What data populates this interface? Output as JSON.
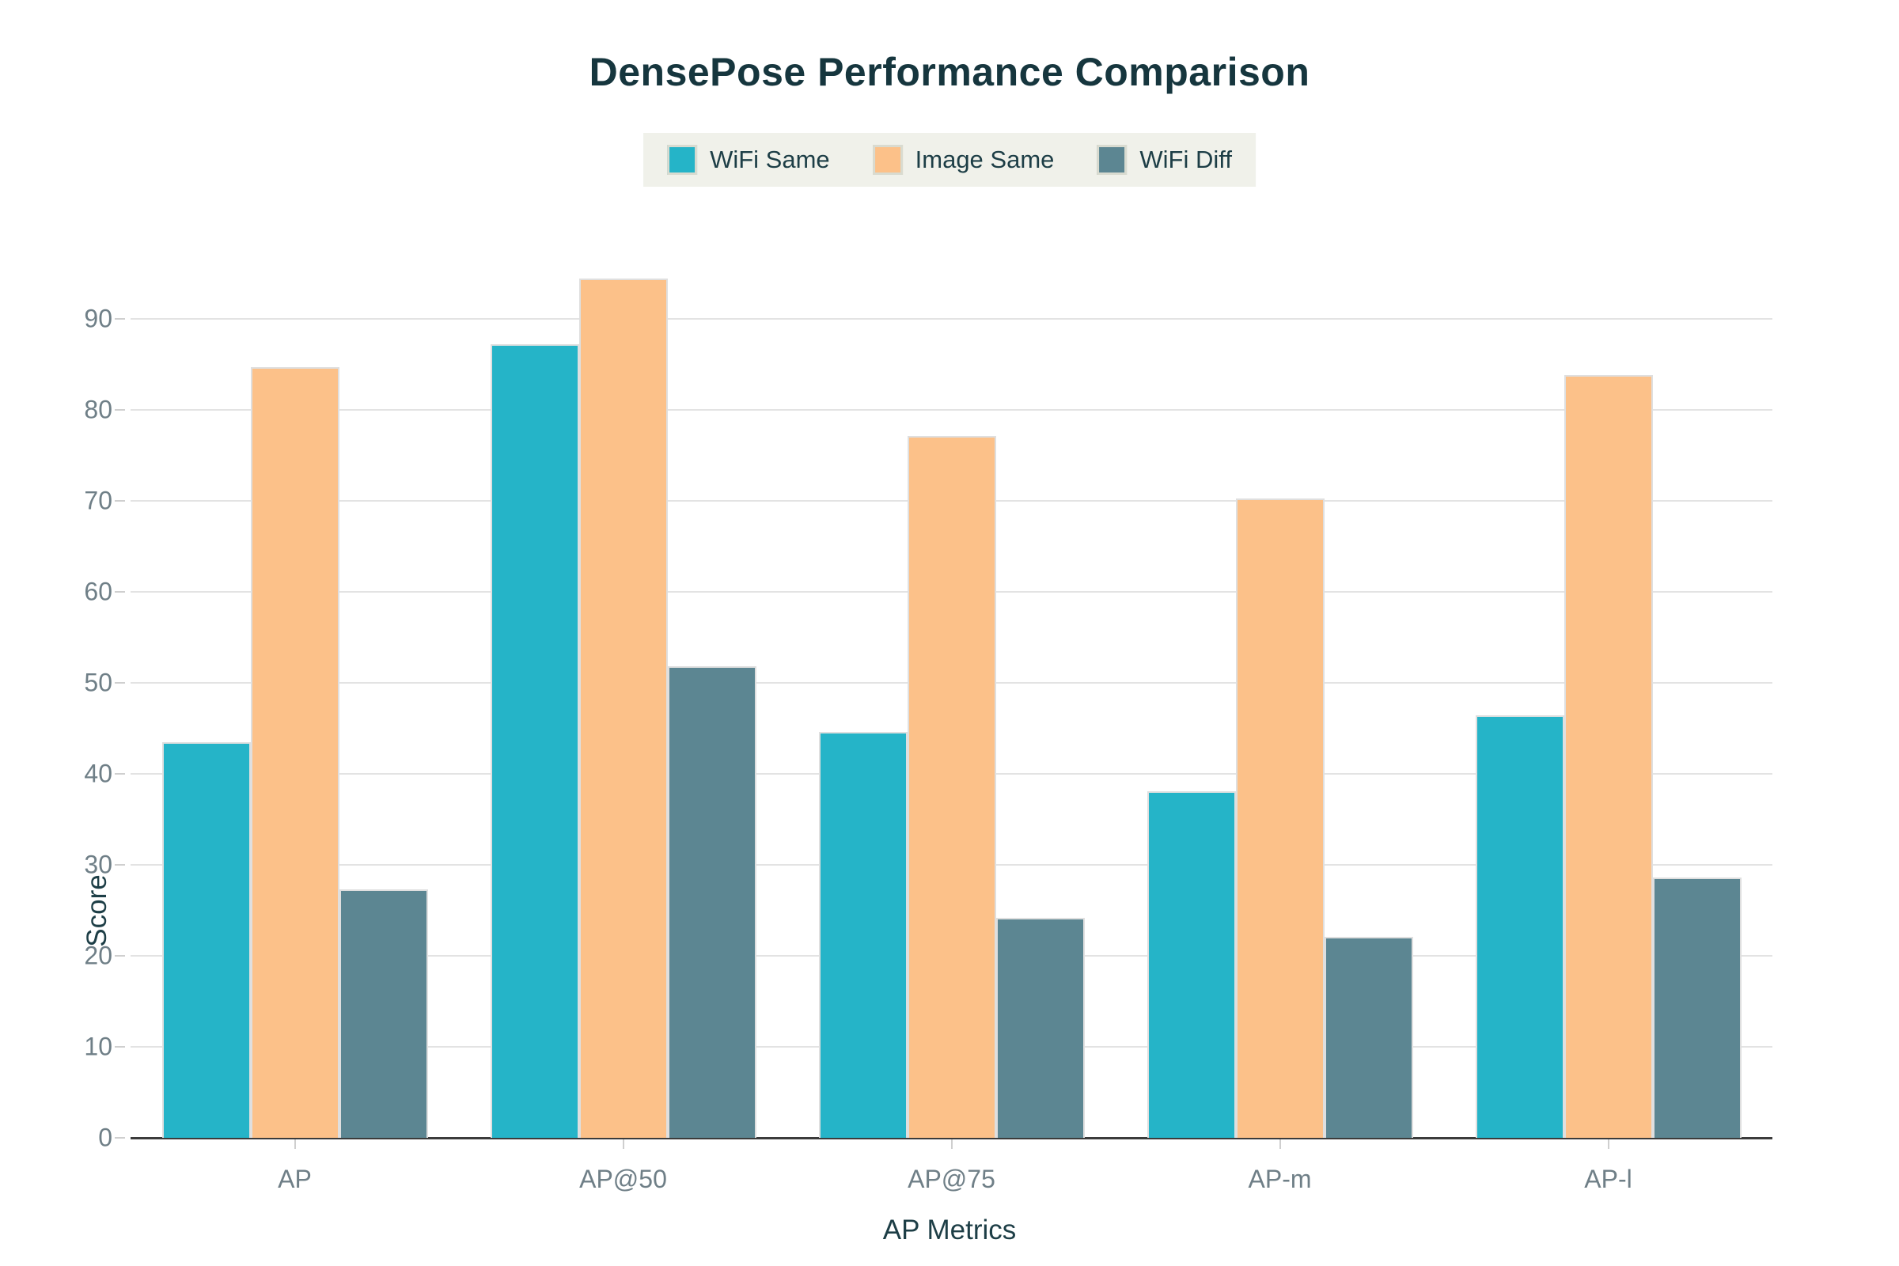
{
  "chart_data": {
    "type": "bar",
    "title": "DensePose Performance Comparison",
    "xlabel": "AP Metrics",
    "ylabel": "Score",
    "categories": [
      "AP",
      "AP@50",
      "AP@75",
      "AP-m",
      "AP-l"
    ],
    "series": [
      {
        "name": "WiFi Same",
        "color": "#25b4c8",
        "values": [
          43.5,
          87.2,
          44.6,
          38.1,
          46.4
        ]
      },
      {
        "name": "Image Same",
        "color": "#fcc189",
        "values": [
          84.7,
          94.4,
          77.1,
          70.3,
          83.8
        ]
      },
      {
        "name": "WiFi Diff",
        "color": "#5c8692",
        "values": [
          27.3,
          51.8,
          24.2,
          22.1,
          28.6
        ]
      }
    ],
    "ylim": [
      0,
      100
    ],
    "yticks": [
      0,
      10,
      20,
      30,
      40,
      50,
      60,
      70,
      80,
      90
    ],
    "grid": true,
    "legend_position": "top-center",
    "colors": {
      "title_text": "#16363e",
      "axis_label_text": "#1d3e46",
      "tick_text": "#6f7f87",
      "grid_line": "#e3e3e3",
      "axis_line": "#3b3b3b",
      "legend_background": "#f0f1ea",
      "plot_background": "#ffffff"
    }
  }
}
